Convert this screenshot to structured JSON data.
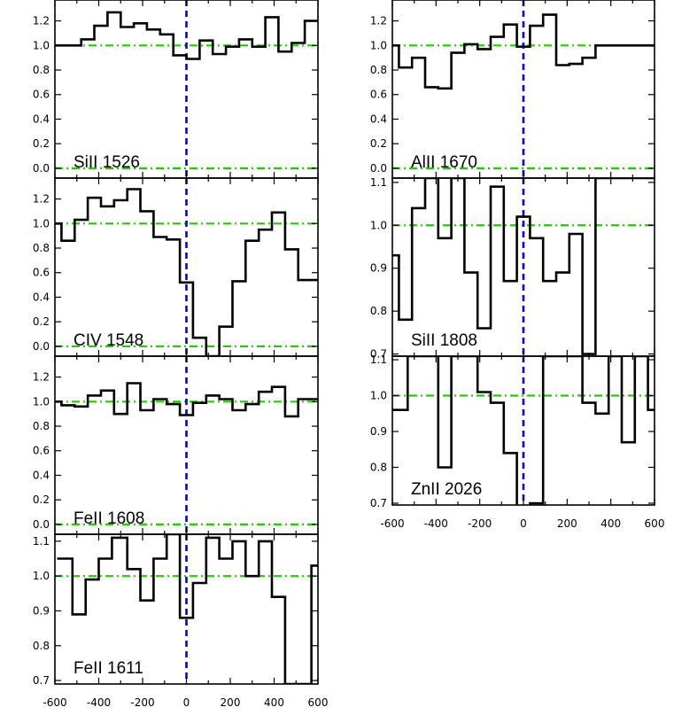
{
  "chart_data": [
    {
      "type": "line",
      "label": "SiII 1526",
      "column": "left",
      "ylim": [
        -0.08,
        1.37
      ],
      "yticks": [
        "0.0",
        "0.2",
        "0.4",
        "0.6",
        "0.8",
        "1.0",
        "1.2"
      ],
      "ytick_values": [
        0.0,
        0.2,
        0.4,
        0.6,
        0.8,
        1.0,
        1.2
      ],
      "xlim": [
        -600,
        600
      ],
      "reference_lines": [
        1.0,
        0.0
      ],
      "x": [
        -600,
        -540,
        -480,
        -420,
        -360,
        -300,
        -240,
        -180,
        -120,
        -60,
        0,
        60,
        120,
        180,
        240,
        300,
        360,
        420,
        480,
        540
      ],
      "y": [
        1.0,
        1.0,
        1.05,
        1.16,
        1.27,
        1.15,
        1.18,
        1.13,
        1.09,
        0.92,
        0.89,
        1.04,
        0.93,
        0.99,
        1.05,
        0.99,
        1.23,
        0.95,
        1.02,
        1.2
      ]
    },
    {
      "type": "line",
      "label": "CIV 1548",
      "column": "left",
      "ylim": [
        -0.08,
        1.37
      ],
      "yticks": [
        "0.0",
        "0.2",
        "0.4",
        "0.6",
        "0.8",
        "1.0",
        "1.2"
      ],
      "ytick_values": [
        0.0,
        0.2,
        0.4,
        0.6,
        0.8,
        1.0,
        1.2
      ],
      "xlim": [
        -600,
        600
      ],
      "reference_lines": [
        1.0,
        0.0
      ],
      "x": [
        -600,
        -570,
        -510,
        -450,
        -390,
        -330,
        -270,
        -210,
        -150,
        -90,
        -30,
        30,
        90,
        150,
        210,
        270,
        330,
        390,
        450,
        510,
        570
      ],
      "y": [
        1.0,
        0.86,
        1.03,
        1.21,
        1.14,
        1.19,
        1.28,
        1.1,
        0.89,
        0.87,
        0.52,
        0.07,
        -0.08,
        0.16,
        0.53,
        0.86,
        0.95,
        1.09,
        0.79,
        0.54,
        0.54
      ]
    },
    {
      "type": "line",
      "label": "FeII 1608",
      "column": "left",
      "ylim": [
        -0.08,
        1.37
      ],
      "yticks": [
        "0.0",
        "0.2",
        "0.4",
        "0.6",
        "0.8",
        "1.0",
        "1.2"
      ],
      "ytick_values": [
        0.0,
        0.2,
        0.4,
        0.6,
        0.8,
        1.0,
        1.2
      ],
      "xlim": [
        -600,
        600
      ],
      "reference_lines": [
        1.0,
        0.0
      ],
      "x": [
        -600,
        -570,
        -510,
        -450,
        -390,
        -330,
        -270,
        -210,
        -150,
        -90,
        -30,
        30,
        90,
        150,
        210,
        270,
        330,
        390,
        450,
        510,
        570
      ],
      "y": [
        1.0,
        0.97,
        0.96,
        1.05,
        1.09,
        0.9,
        1.15,
        0.93,
        1.02,
        0.98,
        0.89,
        0.99,
        1.05,
        1.02,
        0.93,
        0.98,
        1.08,
        1.12,
        0.88,
        1.02,
        1.02
      ]
    },
    {
      "type": "line",
      "label": "FeII 1611",
      "column": "left",
      "ylim": [
        0.69,
        1.12
      ],
      "yticks": [
        "0.7",
        "0.8",
        "0.9",
        "1.0",
        "1.1"
      ],
      "ytick_values": [
        0.7,
        0.8,
        0.9,
        1.0,
        1.1
      ],
      "xlim": [
        -600,
        600
      ],
      "reference_lines": [
        1.0
      ],
      "xticks": [
        "-600",
        "-400",
        "-200",
        "0",
        "200",
        "400",
        "600"
      ],
      "xtick_values": [
        -600,
        -400,
        -200,
        0,
        200,
        400,
        600
      ],
      "x": [
        -590,
        -520,
        -460,
        -400,
        -340,
        -270,
        -210,
        -150,
        -90,
        -30,
        30,
        90,
        150,
        210,
        270,
        330,
        390,
        450,
        510,
        570
      ],
      "y": [
        1.05,
        0.89,
        0.99,
        1.05,
        1.11,
        1.02,
        0.93,
        1.05,
        1.12,
        0.88,
        0.98,
        1.11,
        1.05,
        1.1,
        1.0,
        1.1,
        0.94,
        0.69,
        0.69,
        1.03
      ]
    },
    {
      "type": "line",
      "label": "AlII 1670",
      "column": "right",
      "ylim": [
        -0.08,
        1.37
      ],
      "yticks": [
        "0.0",
        "0.2",
        "0.4",
        "0.6",
        "0.8",
        "1.0",
        "1.2"
      ],
      "ytick_values": [
        0.0,
        0.2,
        0.4,
        0.6,
        0.8,
        1.0,
        1.2
      ],
      "xlim": [
        -600,
        600
      ],
      "reference_lines": [
        1.0,
        0.0
      ],
      "x": [
        -600,
        -570,
        -510,
        -450,
        -390,
        -330,
        -270,
        -210,
        -150,
        -90,
        -30,
        30,
        90,
        150,
        210,
        270,
        330,
        390,
        450,
        510,
        570
      ],
      "y": [
        1.0,
        0.82,
        0.9,
        0.66,
        0.65,
        0.94,
        1.01,
        0.97,
        1.07,
        1.17,
        0.99,
        1.16,
        1.25,
        0.84,
        0.85,
        0.9,
        1.0,
        1.0,
        1.0,
        1.0,
        1.0
      ]
    },
    {
      "type": "line",
      "label": "SiII 1808",
      "column": "right",
      "ylim": [
        0.695,
        1.11
      ],
      "yticks": [
        "0.7",
        "0.8",
        "0.9",
        "1.0",
        "1.1"
      ],
      "ytick_values": [
        0.7,
        0.8,
        0.9,
        1.0,
        1.1
      ],
      "xlim": [
        -600,
        600
      ],
      "reference_lines": [
        1.0
      ],
      "x": [
        -600,
        -570,
        -510,
        -450,
        -390,
        -330,
        -270,
        -210,
        -150,
        -90,
        -30,
        30,
        90,
        150,
        210,
        270,
        330,
        390,
        450,
        510,
        570
      ],
      "y": [
        0.93,
        0.78,
        1.04,
        1.11,
        0.97,
        1.11,
        0.89,
        0.76,
        1.09,
        0.87,
        1.02,
        0.97,
        0.87,
        0.89,
        0.98,
        0.7,
        1.11,
        1.11,
        1.11,
        1.11,
        1.11
      ]
    },
    {
      "type": "line",
      "label": "ZnII 2026",
      "column": "right",
      "ylim": [
        0.695,
        1.11
      ],
      "yticks": [
        "0.7",
        "0.8",
        "0.9",
        "1.0",
        "1.1"
      ],
      "ytick_values": [
        0.7,
        0.8,
        0.9,
        1.0,
        1.1
      ],
      "xlim": [
        -600,
        600
      ],
      "reference_lines": [
        1.0
      ],
      "xticks": [
        "-600",
        "-400",
        "-200",
        "0",
        "200",
        "400",
        "600"
      ],
      "xtick_values": [
        -600,
        -400,
        -200,
        0,
        200,
        400,
        600
      ],
      "x": [
        -600,
        -530,
        -460,
        -390,
        -330,
        -270,
        -210,
        -150,
        -90,
        -30,
        30,
        90,
        150,
        210,
        270,
        330,
        390,
        450,
        510,
        570
      ],
      "y": [
        0.96,
        1.11,
        1.11,
        0.8,
        1.11,
        1.11,
        1.01,
        0.98,
        0.84,
        0.69,
        0.7,
        1.11,
        1.11,
        1.11,
        0.98,
        0.95,
        1.11,
        0.87,
        1.11,
        0.96
      ]
    }
  ],
  "style": {
    "spectrum_color": "#000000",
    "continuum_color": "#22cc00",
    "zero_velocity_color": "#0000dd",
    "frame_color": "#000000"
  }
}
